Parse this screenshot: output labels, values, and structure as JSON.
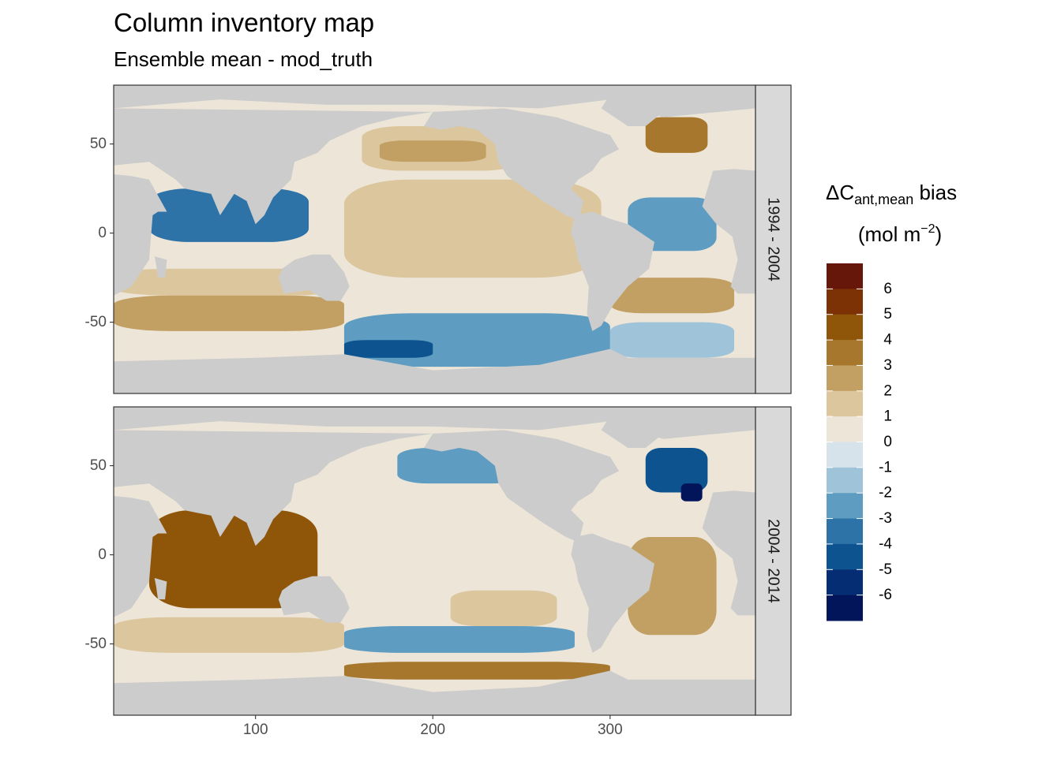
{
  "chart_data": {
    "type": "heatmap",
    "title": "Column inventory map",
    "subtitle": "Ensemble mean - mod_truth",
    "xlabel": "",
    "ylabel": "",
    "xlim": [
      20,
      382
    ],
    "ylim": [
      -90,
      83
    ],
    "x_ticks": [
      100,
      200,
      300
    ],
    "x_tick_labels": [
      "100",
      "200",
      "300"
    ],
    "y_ticks": [
      50,
      0,
      -50
    ],
    "y_tick_labels": [
      "50",
      "0",
      "-50"
    ],
    "grid": true,
    "facets": [
      {
        "label": "1994 - 2004",
        "regions": [
          {
            "lon": [
              150,
              295
            ],
            "lat": [
              -25,
              30
            ],
            "value": 1.5
          },
          {
            "lon": [
              160,
              250
            ],
            "lat": [
              35,
              60
            ],
            "value": 1.2
          },
          {
            "lon": [
              170,
              230
            ],
            "lat": [
              40,
              52
            ],
            "value": 2.5
          },
          {
            "lon": [
              150,
              300
            ],
            "lat": [
              -75,
              -45
            ],
            "value": -2
          },
          {
            "lon": [
              150,
              200
            ],
            "lat": [
              -70,
              -60
            ],
            "value": -4
          },
          {
            "lon": [
              40,
              130
            ],
            "lat": [
              -5,
              25
            ],
            "value": -3
          },
          {
            "lon": [
              20,
              150
            ],
            "lat": [
              -35,
              -20
            ],
            "value": 1.5
          },
          {
            "lon": [
              20,
              150
            ],
            "lat": [
              -55,
              -35
            ],
            "value": 2.5
          },
          {
            "lon": [
              310,
              360
            ],
            "lat": [
              -10,
              20
            ],
            "value": -2
          },
          {
            "lon": [
              300,
              370
            ],
            "lat": [
              -45,
              -25
            ],
            "value": 3
          },
          {
            "lon": [
              320,
              355
            ],
            "lat": [
              45,
              65
            ],
            "value": 4
          },
          {
            "lon": [
              300,
              370
            ],
            "lat": [
              -70,
              -50
            ],
            "value": -1
          }
        ]
      },
      {
        "label": "2004 - 2014",
        "regions": [
          {
            "lon": [
              150,
              300
            ],
            "lat": [
              -25,
              30
            ],
            "value": 0.5
          },
          {
            "lon": [
              180,
              250
            ],
            "lat": [
              40,
              60
            ],
            "value": -2
          },
          {
            "lon": [
              210,
              270
            ],
            "lat": [
              -40,
              -20
            ],
            "value": 1.5
          },
          {
            "lon": [
              40,
              135
            ],
            "lat": [
              -30,
              25
            ],
            "value": 4.5
          },
          {
            "lon": [
              20,
              150
            ],
            "lat": [
              -55,
              -35
            ],
            "value": 2
          },
          {
            "lon": [
              150,
              300
            ],
            "lat": [
              -70,
              -60
            ],
            "value": 3.5
          },
          {
            "lon": [
              150,
              280
            ],
            "lat": [
              -55,
              -40
            ],
            "value": -2
          },
          {
            "lon": [
              310,
              360
            ],
            "lat": [
              -45,
              10
            ],
            "value": 2.5
          },
          {
            "lon": [
              320,
              355
            ],
            "lat": [
              35,
              60
            ],
            "value": -4
          },
          {
            "lon": [
              340,
              352
            ],
            "lat": [
              30,
              40
            ],
            "value": -6
          }
        ]
      }
    ],
    "legend": {
      "title_main": "ΔC",
      "title_sub": "ant,mean",
      "title_rest": " bias",
      "unit_main": "(mol m",
      "unit_sup": "−2",
      "unit_close": ")",
      "position": "right",
      "labels": [
        "6",
        "5",
        "4",
        "3",
        "2",
        "1",
        "0",
        "-1",
        "-2",
        "-3",
        "-4",
        "-5",
        "-6"
      ],
      "colors": [
        "#67160a",
        "#7d3206",
        "#8f5509",
        "#a6772c",
        "#c2a063",
        "#dcc69d",
        "#ede6d8",
        "#d6e3ea",
        "#9fc3d8",
        "#5e9cc1",
        "#2d73a8",
        "#0c538f",
        "#052d73",
        "#02155a"
      ]
    },
    "land_color": "#cccccc",
    "panel_border_color": "#333333",
    "strip_color": "#d9d9d9"
  }
}
